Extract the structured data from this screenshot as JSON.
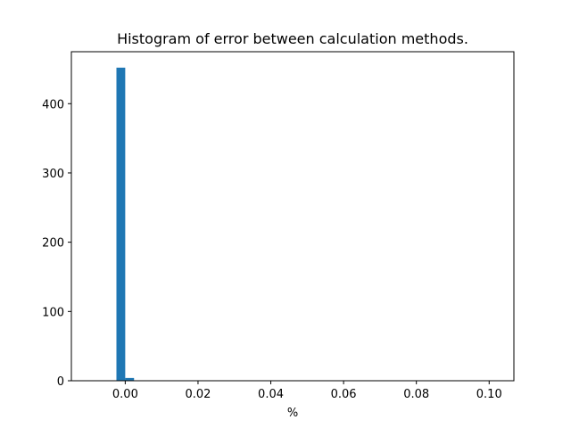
{
  "chart_data": {
    "type": "bar",
    "title": "Histogram of error between calculation methods.",
    "xlabel": "%",
    "ylabel": "",
    "xlim": [
      -0.0148,
      0.1068
    ],
    "ylim": [
      0,
      475
    ],
    "x_ticks": [
      0.0,
      0.02,
      0.04,
      0.06,
      0.08,
      0.1
    ],
    "x_tick_labels": [
      "0.00",
      "0.02",
      "0.04",
      "0.06",
      "0.08",
      "0.10"
    ],
    "y_ticks": [
      0,
      100,
      200,
      300,
      400
    ],
    "y_tick_labels": [
      "0",
      "100",
      "200",
      "300",
      "400"
    ],
    "bin_width": 0.00242,
    "bins": [
      {
        "x0": -0.00242,
        "x1": 0.0,
        "value": 452
      },
      {
        "x0": 0.0,
        "x1": 0.00242,
        "value": 4
      }
    ],
    "grid": false,
    "color": "#1f77b4"
  }
}
